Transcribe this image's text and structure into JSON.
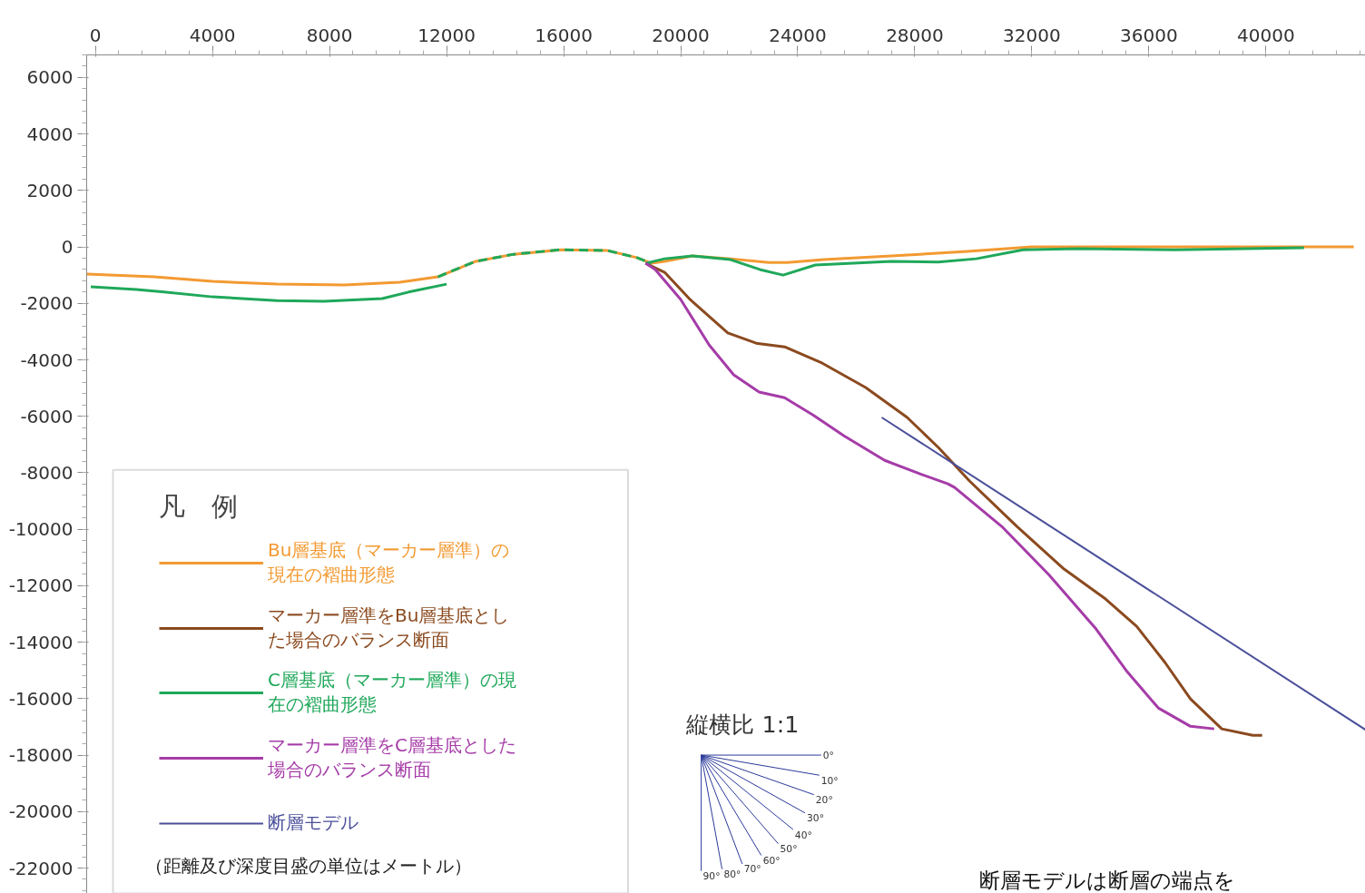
{
  "chart_data": {
    "type": "line",
    "legend_title": "凡　例",
    "xlim": [
      -300,
      43400
    ],
    "ylim": [
      -22900,
      6800
    ],
    "xticks": [
      0,
      4000,
      8000,
      12000,
      16000,
      20000,
      24000,
      28000,
      32000,
      36000,
      40000
    ],
    "yticks": [
      6000,
      4000,
      2000,
      0,
      -2000,
      -4000,
      -6000,
      -8000,
      -10000,
      -12000,
      -14000,
      -16000,
      -18000,
      -20000,
      -22000
    ],
    "grid": false,
    "legend": "bottom left",
    "line_style": "solid",
    "marker": "none",
    "series": [
      {
        "name": "Bu層基底（マーカー層準）の現在の褶曲形態",
        "color": "#f39a32",
        "x": [
          -300,
          2000,
          4000,
          6200,
          8500,
          10400,
          11700,
          13000,
          14300,
          15900,
          17500,
          18500,
          19000,
          19450,
          20400,
          21700,
          23000,
          23650,
          24900,
          27200,
          29800,
          32000,
          35300,
          43000
        ],
        "values": [
          -960,
          -1060,
          -1220,
          -1320,
          -1350,
          -1250,
          -1060,
          -510,
          -260,
          -100,
          -130,
          -380,
          -580,
          -510,
          -320,
          -420,
          -550,
          -550,
          -450,
          -320,
          -160,
          0,
          0,
          0
        ]
      },
      {
        "name": "マーカー層準をBu層基底とした場合のバランス断面",
        "color": "#8b4a1f",
        "x": [
          18800,
          19450,
          20320,
          21610,
          22580,
          23550,
          24840,
          26320,
          27740,
          28810,
          29870,
          31490,
          33100,
          34520,
          35580,
          36550,
          37420,
          38490,
          39550,
          39870
        ],
        "values": [
          -580,
          -900,
          -1860,
          -3050,
          -3410,
          -3540,
          -4120,
          -4980,
          -6040,
          -7110,
          -8290,
          -9900,
          -11410,
          -12470,
          -13440,
          -14720,
          -16010,
          -17070,
          -17300,
          -17300
        ]
      },
      {
        "name": "C層基底（マーカー層準）の現在の褶曲形態",
        "color": "#1fa85a",
        "x": [
          -160,
          1400,
          2350,
          4000,
          6200,
          7800,
          9800,
          10700,
          12000,
          15000,
          18800,
          19450,
          20400,
          21700,
          22700,
          23500,
          24600,
          27200,
          28800,
          30100,
          31700,
          33600,
          36900,
          41300
        ],
        "values": [
          -1410,
          -1510,
          -1600,
          -1770,
          -1900,
          -1930,
          -1830,
          -1600,
          -1320,
          null,
          -580,
          -420,
          -320,
          -450,
          -800,
          -1000,
          -640,
          -510,
          -540,
          -420,
          -100,
          -60,
          -100,
          -30
        ]
      },
      {
        "color": "#1fa85a",
        "line_style": "dashed",
        "x": [
          11700,
          13000,
          14300,
          15900,
          17500,
          18500,
          19000
        ],
        "values": [
          -1060,
          -510,
          -260,
          -100,
          -130,
          -380,
          -580
        ]
      },
      {
        "name": "マーカー層準をC層基底とした場合のバランス断面",
        "color": "#a53ca8",
        "x": [
          18800,
          19130,
          20000,
          20970,
          21810,
          22680,
          23550,
          24520,
          25580,
          26970,
          28260,
          29130,
          29360,
          30970,
          32580,
          34200,
          35260,
          36320,
          37420,
          38230
        ],
        "values": [
          -580,
          -800,
          -1860,
          -3470,
          -4530,
          -5140,
          -5340,
          -5950,
          -6690,
          -7560,
          -8070,
          -8390,
          -8520,
          -9900,
          -11610,
          -13540,
          -15050,
          -16330,
          -16980,
          -17070
        ]
      },
      {
        "name": "断層モデル",
        "color": "#4a4f9a",
        "x": [
          26870,
          43400
        ],
        "values": [
          -6040,
          -17100
        ]
      }
    ],
    "annotations": [
      "縦横比 1:1",
      "0°",
      "10°",
      "20°",
      "30°",
      "40°",
      "50°",
      "60°",
      "70°",
      "80°",
      "90°",
      "（距離及び深度目盛の単位はメートル）",
      "断層モデルは断層の端点を"
    ]
  }
}
